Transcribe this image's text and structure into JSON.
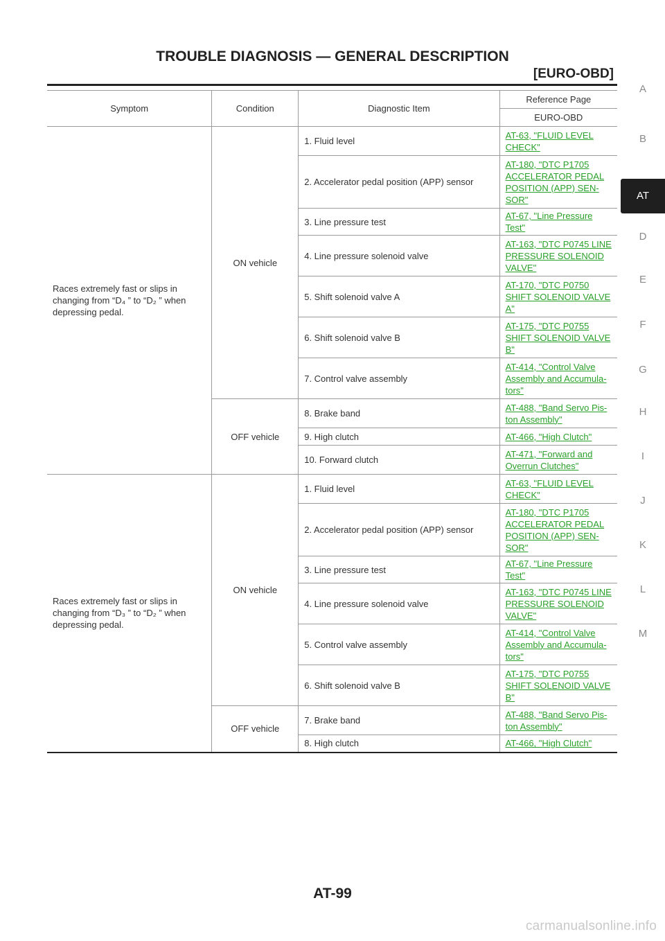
{
  "header": {
    "title": "TROUBLE DIAGNOSIS — GENERAL DESCRIPTION",
    "subtitle": "[EURO-OBD]"
  },
  "side_index": {
    "letters": [
      "A",
      "B",
      "AT",
      "D",
      "E",
      "F",
      "G",
      "H",
      "I",
      "J",
      "K",
      "L",
      "M"
    ],
    "active": "AT"
  },
  "table": {
    "headers": {
      "symptom": "Symptom",
      "condition": "Condition",
      "item": "Diagnostic Item",
      "reference": "Reference Page",
      "reference_sub": "EURO-OBD"
    },
    "groups": [
      {
        "symptom": [
          "Races extremely fast or slips in",
          "changing from “D₄ ” to “D₂ ” when",
          "depressing pedal."
        ],
        "on_condition": "ON vehicle",
        "off_condition": "OFF vehicle",
        "on_items": [
          {
            "item": "1. Fluid level",
            "ref": [
              "AT-63, \"FLUID LEVEL",
              "CHECK\""
            ]
          },
          {
            "item": "2. Accelerator pedal position (APP) sensor",
            "ref": [
              "AT-180, \"DTC P1705",
              "ACCELERATOR PEDAL",
              "POSITION (APP) SEN-",
              "SOR\""
            ]
          },
          {
            "item": "3. Line pressure test",
            "ref": [
              "AT-67, \"Line Pressure Test\""
            ]
          },
          {
            "item": "4. Line pressure solenoid valve",
            "ref": [
              "AT-163, \"DTC P0745 LINE",
              "PRESSURE SOLENOID",
              "VALVE\""
            ]
          },
          {
            "item": "5. Shift solenoid valve A",
            "ref": [
              "AT-170, \"DTC P0750",
              "SHIFT SOLENOID VALVE",
              "A\""
            ]
          },
          {
            "item": "6. Shift solenoid valve B",
            "ref": [
              "AT-175, \"DTC P0755",
              "SHIFT SOLENOID VALVE",
              "B\""
            ]
          },
          {
            "item": "7. Control valve assembly",
            "ref": [
              "AT-414, \"Control Valve",
              "Assembly and Accumula-",
              "tors\""
            ]
          }
        ],
        "off_items": [
          {
            "item": "8. Brake band",
            "ref": [
              "AT-488, \"Band Servo Pis-",
              "ton Assembly\""
            ]
          },
          {
            "item": "9. High clutch",
            "ref": [
              "AT-466, \"High Clutch\""
            ]
          },
          {
            "item": "10. Forward clutch",
            "ref": [
              "AT-471, \"Forward and",
              "Overrun Clutches\""
            ]
          }
        ]
      },
      {
        "symptom": [
          "Races extremely fast or slips in",
          "changing from “D₃ ” to “D₂ ” when",
          "depressing pedal."
        ],
        "on_condition": "ON vehicle",
        "off_condition": "OFF vehicle",
        "on_items": [
          {
            "item": "1. Fluid level",
            "ref": [
              "AT-63, \"FLUID LEVEL",
              "CHECK\""
            ]
          },
          {
            "item": "2. Accelerator pedal position (APP) sensor",
            "ref": [
              "AT-180, \"DTC P1705",
              "ACCELERATOR PEDAL",
              "POSITION (APP) SEN-",
              "SOR\""
            ]
          },
          {
            "item": "3. Line pressure test",
            "ref": [
              "AT-67, \"Line Pressure Test\""
            ]
          },
          {
            "item": "4. Line pressure solenoid valve",
            "ref": [
              "AT-163, \"DTC P0745 LINE",
              "PRESSURE SOLENOID",
              "VALVE\""
            ]
          },
          {
            "item": "5. Control valve assembly",
            "ref": [
              "AT-414, \"Control Valve",
              "Assembly and Accumula-",
              "tors\""
            ]
          },
          {
            "item": "6. Shift solenoid valve B",
            "ref": [
              "AT-175, \"DTC P0755",
              "SHIFT SOLENOID VALVE",
              "B\""
            ]
          }
        ],
        "off_items": [
          {
            "item": "7. Brake band",
            "ref": [
              "AT-488, \"Band Servo Pis-",
              "ton Assembly\""
            ]
          },
          {
            "item": "8. High clutch",
            "ref": [
              "AT-466, \"High Clutch\""
            ]
          }
        ]
      }
    ]
  },
  "footer": {
    "page_number": "AT-99",
    "watermark": "carmanualsonline.info"
  }
}
